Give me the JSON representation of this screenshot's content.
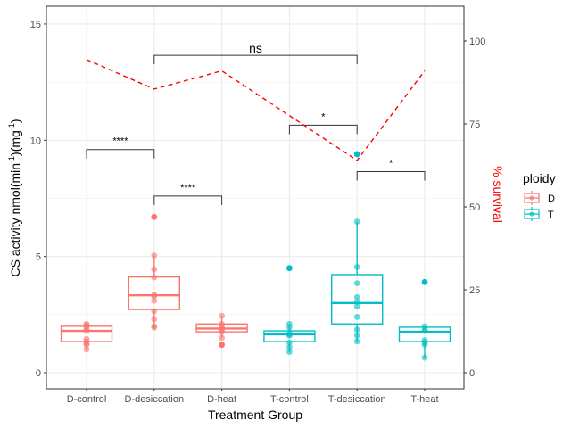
{
  "chart_data": {
    "type": "box",
    "xlabel": "Treatment Group",
    "ylabel_main": "CS activity nmol(min",
    "ylabel_sup1": "-1",
    "ylabel_mid": ")(mg",
    "ylabel_sup2": "-1",
    "ylabel_end": ")",
    "y2label": "% survival",
    "ylim": [
      -0.8,
      15.8
    ],
    "yticks": [
      0,
      5,
      10,
      15
    ],
    "y2ticks": [
      0,
      25,
      50,
      75,
      100
    ],
    "y2_scale_note": "survival % mapped onto secondary axis",
    "categories": [
      "D-control",
      "D-desiccation",
      "D-heat",
      "T-control",
      "T-desiccation",
      "T-heat"
    ],
    "legend": {
      "title": "ploidy",
      "position": "right",
      "entries": [
        {
          "label": "D",
          "color": "#F8766D"
        },
        {
          "label": "T",
          "color": "#00BFC4"
        }
      ]
    },
    "groups": [
      {
        "category": "D-control",
        "ploidy": "D",
        "q1": 1.34,
        "median": 1.8,
        "q3": 2.0,
        "whisker_low": 1.0,
        "whisker_high": 2.1,
        "outliers": [],
        "points": [
          2.1,
          2.05,
          2.0,
          1.9,
          1.8,
          1.45,
          1.35,
          1.25,
          1.2,
          1.0
        ]
      },
      {
        "category": "D-desiccation",
        "ploidy": "D",
        "q1": 2.72,
        "median": 3.33,
        "q3": 4.12,
        "whisker_low": 1.95,
        "whisker_high": 5.05,
        "outliers": [
          6.7
        ],
        "points": [
          5.05,
          4.45,
          4.1,
          3.35,
          3.3,
          3.1,
          2.65,
          2.3,
          2.0,
          1.95
        ]
      },
      {
        "category": "D-heat",
        "ploidy": "D",
        "q1": 1.76,
        "median": 1.9,
        "q3": 2.1,
        "whisker_low": 1.5,
        "whisker_high": 2.45,
        "outliers": [
          1.2
        ],
        "points": [
          2.45,
          2.1,
          2.0,
          1.9,
          1.85,
          1.75,
          1.5
        ]
      },
      {
        "category": "T-control",
        "ploidy": "T",
        "q1": 1.34,
        "median": 1.65,
        "q3": 1.8,
        "whisker_low": 0.9,
        "whisker_high": 2.1,
        "outliers": [
          4.5
        ],
        "points": [
          2.1,
          1.95,
          1.7,
          1.65,
          1.6,
          1.3,
          1.1,
          0.9
        ]
      },
      {
        "category": "T-desiccation",
        "ploidy": "T",
        "q1": 2.1,
        "median": 3.0,
        "q3": 4.22,
        "whisker_low": 1.35,
        "whisker_high": 6.5,
        "outliers": [
          9.4
        ],
        "points": [
          6.5,
          4.55,
          3.85,
          3.25,
          3.05,
          2.85,
          2.4,
          1.85,
          1.6,
          1.35
        ]
      },
      {
        "category": "T-heat",
        "ploidy": "T",
        "q1": 1.34,
        "median": 1.76,
        "q3": 1.96,
        "whisker_low": 0.65,
        "whisker_high": 2.0,
        "outliers": [
          3.9
        ],
        "points": [
          2.0,
          1.85,
          1.8,
          1.4,
          1.3,
          1.2,
          0.65
        ]
      }
    ],
    "survival": {
      "name": "% survival",
      "color": "#FF0000",
      "style": "dashed",
      "values": [
        94.4,
        85.5,
        91.0,
        77.5,
        64.0,
        91.0
      ]
    },
    "annotations": [
      {
        "from": "D-control",
        "to": "D-desiccation",
        "y": 9.6,
        "label": "****"
      },
      {
        "from": "D-desiccation",
        "to": "D-heat",
        "y": 7.6,
        "label": "****"
      },
      {
        "from": "D-desiccation",
        "to": "T-desiccation",
        "y": 13.65,
        "label": "ns"
      },
      {
        "from": "T-control",
        "to": "T-desiccation",
        "y": 10.65,
        "label": "*"
      },
      {
        "from": "T-desiccation",
        "to": "T-heat",
        "y": 8.65,
        "label": "*"
      }
    ],
    "grid": true
  }
}
